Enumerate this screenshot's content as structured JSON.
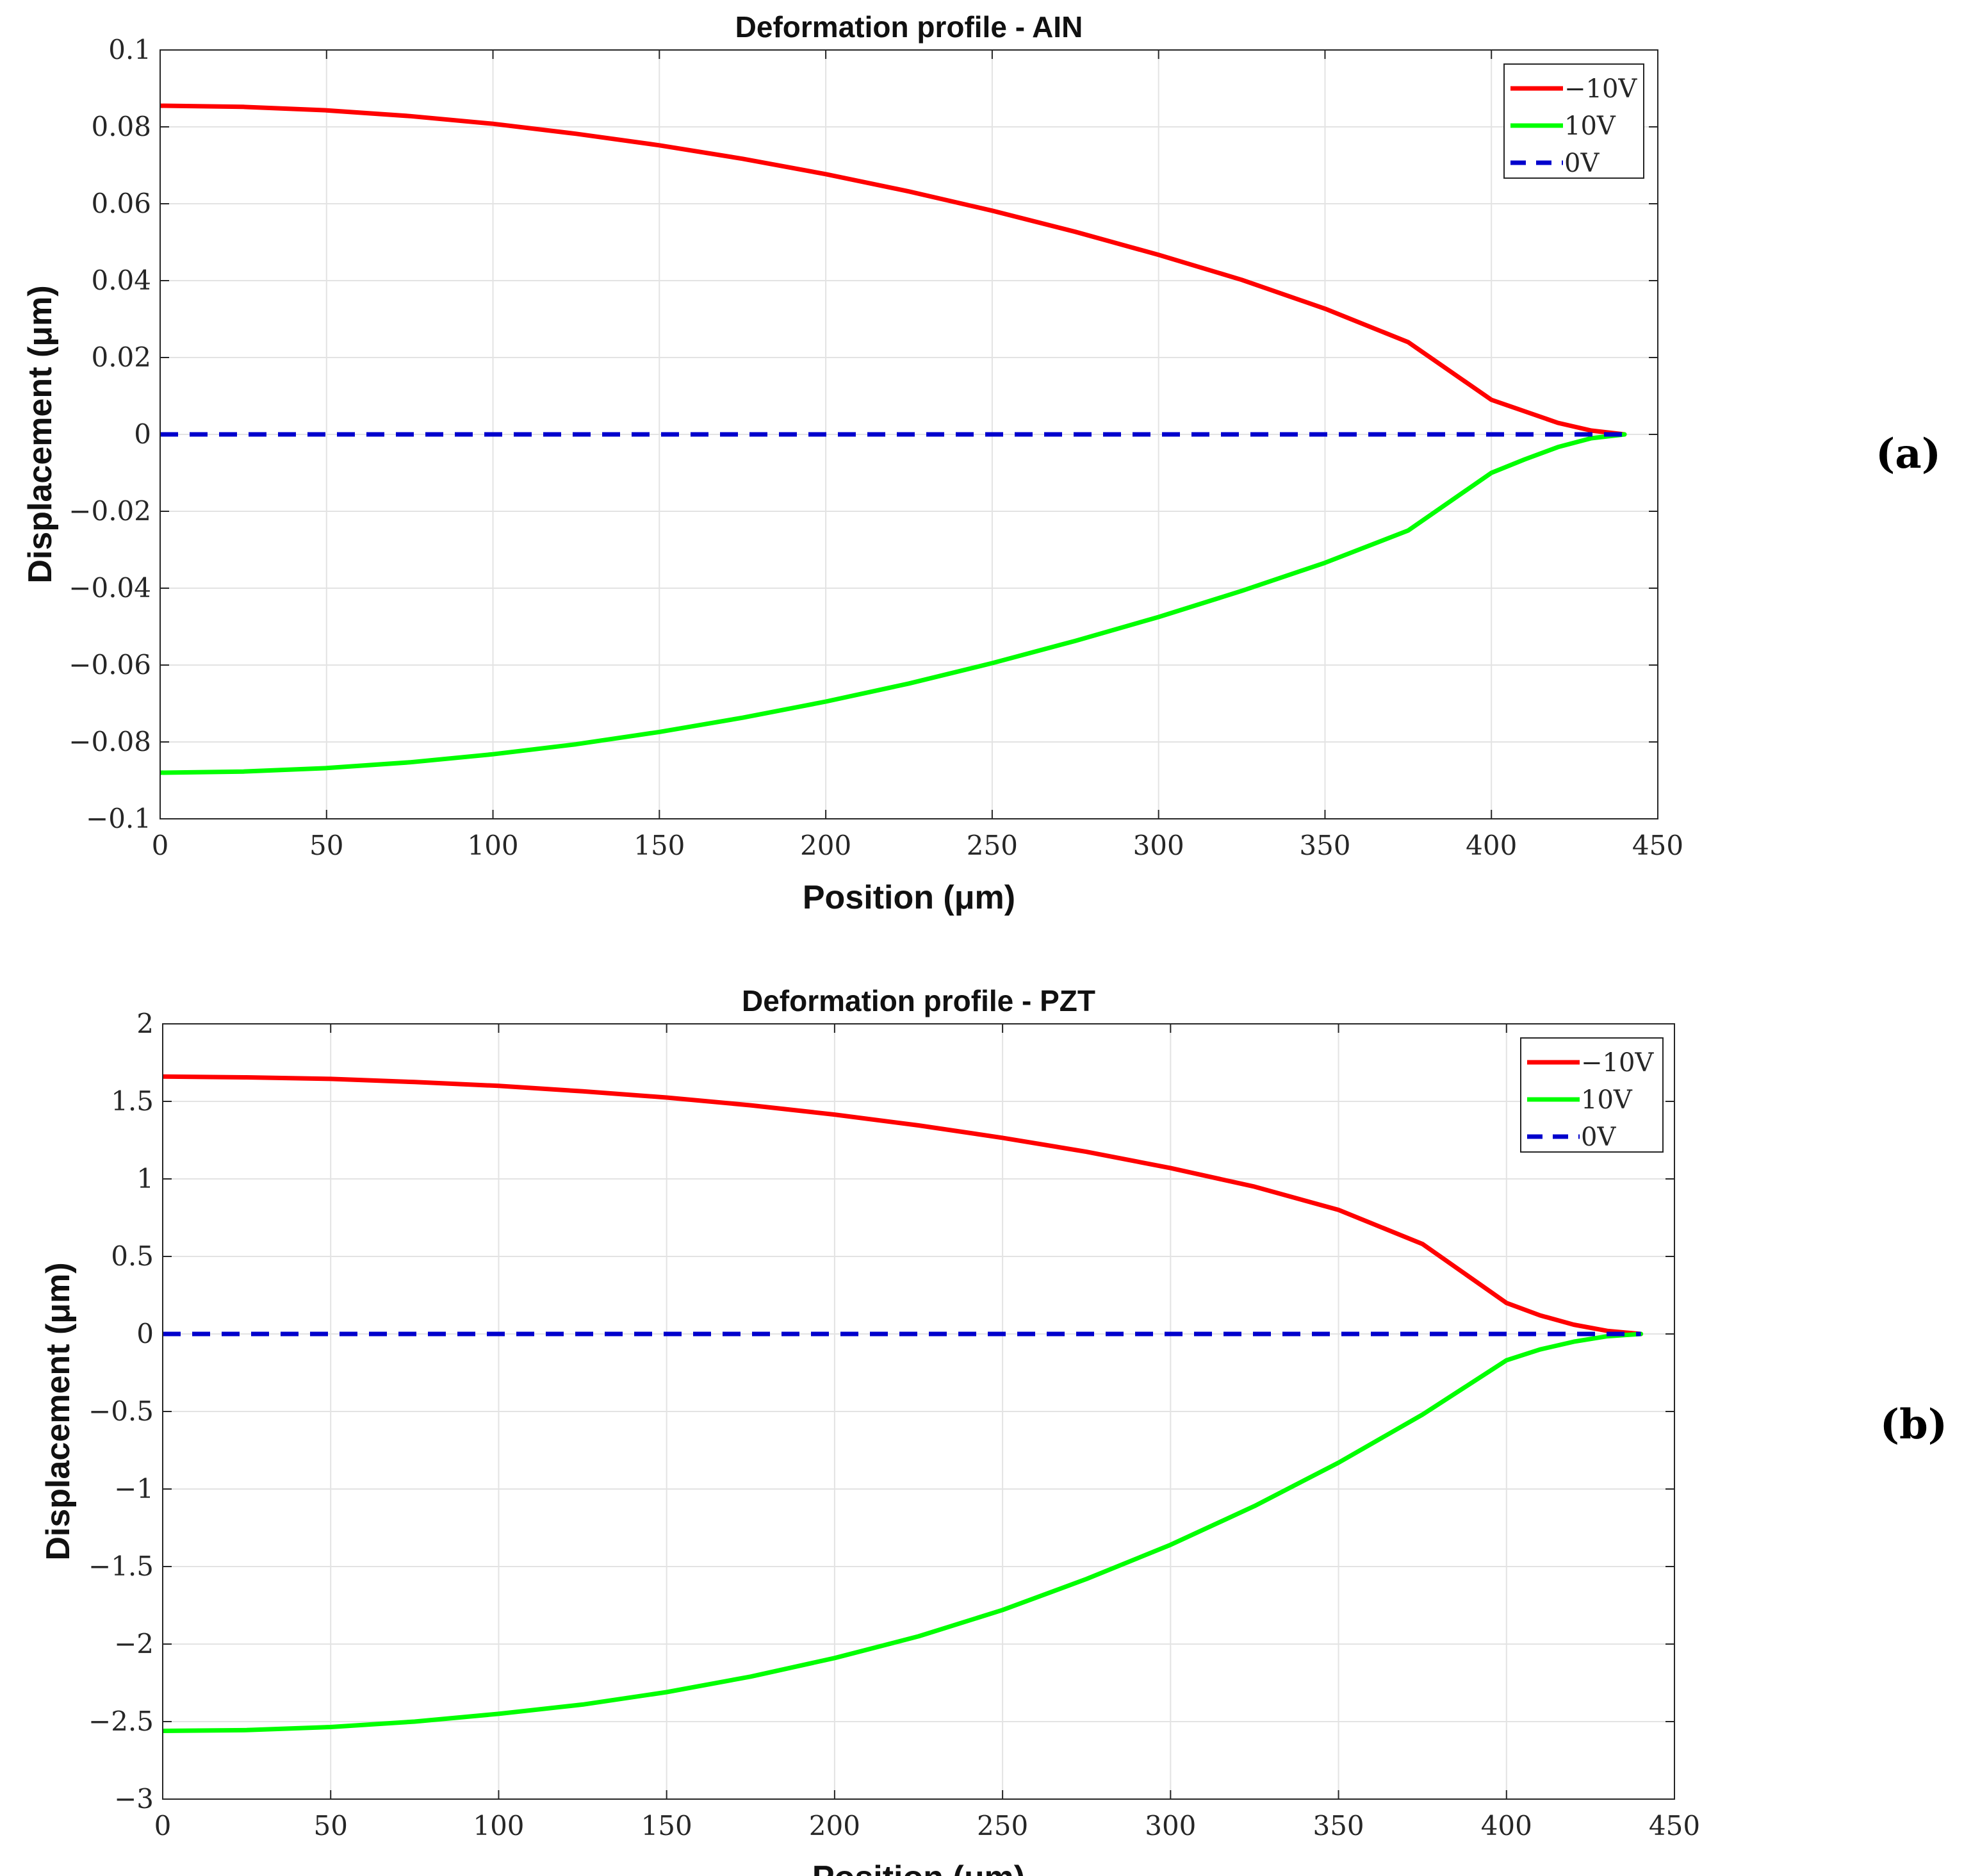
{
  "chart_data": [
    {
      "type": "line",
      "panel_label": "(a)",
      "title": "Deformation profile - AIN",
      "xlabel": "Position (μm)",
      "ylabel": "Displacement (μm)",
      "xlim": [
        0,
        450
      ],
      "ylim": [
        -0.1,
        0.1
      ],
      "xticks": [
        0,
        50,
        100,
        150,
        200,
        250,
        300,
        350,
        400,
        450
      ],
      "xtick_labels": [
        "0",
        "50",
        "100",
        "150",
        "200",
        "250",
        "300",
        "350",
        "400",
        "450"
      ],
      "yticks": [
        0.1,
        0.08,
        0.06,
        0.04,
        0.02,
        0,
        -0.02,
        -0.04,
        -0.06,
        -0.08,
        -0.1
      ],
      "ytick_labels": [
        "0.1",
        "0.08",
        "0.06",
        "0.04",
        "0.02",
        "0",
        "−0.02",
        "−0.04",
        "−0.06",
        "−0.08",
        "−0.1"
      ],
      "grid": true,
      "legend_position": "top-right",
      "x": [
        0,
        25,
        50,
        75,
        100,
        125,
        150,
        175,
        200,
        225,
        250,
        275,
        300,
        325,
        350,
        375,
        400,
        410,
        420,
        430,
        440
      ],
      "series": [
        {
          "name": "−10V",
          "color": "#ff0000",
          "dash": "solid",
          "values": [
            0.0855,
            0.0852,
            0.0843,
            0.0828,
            0.0808,
            0.0782,
            0.0752,
            0.0717,
            0.0677,
            0.0632,
            0.0582,
            0.0527,
            0.0467,
            0.0402,
            0.0327,
            0.024,
            0.009,
            0.006,
            0.003,
            0.001,
            0
          ]
        },
        {
          "name": "10V",
          "color": "#00ff00",
          "dash": "solid",
          "values": [
            -0.088,
            -0.0877,
            -0.0868,
            -0.0853,
            -0.0832,
            -0.0806,
            -0.0774,
            -0.0737,
            -0.0695,
            -0.0648,
            -0.0595,
            -0.0537,
            -0.0475,
            -0.0407,
            -0.0334,
            -0.025,
            -0.01,
            -0.0065,
            -0.0033,
            -0.001,
            0
          ]
        },
        {
          "name": "0V",
          "color": "#0000cc",
          "dash": "dashed",
          "values": [
            0,
            0,
            0,
            0,
            0,
            0,
            0,
            0,
            0,
            0,
            0,
            0,
            0,
            0,
            0,
            0,
            0,
            0,
            0,
            0,
            0
          ]
        }
      ]
    },
    {
      "type": "line",
      "panel_label": "(b)",
      "title": "Deformation profile - PZT",
      "xlabel": "Position (μm)",
      "ylabel": "Displacement (μm)",
      "xlim": [
        0,
        450
      ],
      "ylim": [
        -3,
        2
      ],
      "xticks": [
        0,
        50,
        100,
        150,
        200,
        250,
        300,
        350,
        400,
        450
      ],
      "xtick_labels": [
        "0",
        "50",
        "100",
        "150",
        "200",
        "250",
        "300",
        "350",
        "400",
        "450"
      ],
      "yticks": [
        2,
        1.5,
        1,
        0.5,
        0,
        -0.5,
        -1,
        -1.5,
        -2,
        -2.5,
        -3
      ],
      "ytick_labels": [
        "2",
        "1.5",
        "1",
        "0.5",
        "0",
        "−0.5",
        "−1",
        "−1.5",
        "−2",
        "−2.5",
        "−3"
      ],
      "grid": true,
      "legend_position": "top-right",
      "x": [
        0,
        25,
        50,
        75,
        100,
        125,
        150,
        175,
        200,
        225,
        250,
        275,
        300,
        325,
        350,
        375,
        400,
        410,
        420,
        430,
        440
      ],
      "series": [
        {
          "name": "−10V",
          "color": "#ff0000",
          "dash": "solid",
          "values": [
            1.66,
            1.655,
            1.645,
            1.625,
            1.6,
            1.565,
            1.525,
            1.475,
            1.415,
            1.345,
            1.265,
            1.175,
            1.07,
            0.95,
            0.8,
            0.58,
            0.2,
            0.12,
            0.06,
            0.02,
            0
          ]
        },
        {
          "name": "10V",
          "color": "#00ff00",
          "dash": "solid",
          "values": [
            -2.56,
            -2.555,
            -2.535,
            -2.5,
            -2.45,
            -2.39,
            -2.31,
            -2.21,
            -2.09,
            -1.95,
            -1.78,
            -1.58,
            -1.36,
            -1.11,
            -0.83,
            -0.52,
            -0.17,
            -0.1,
            -0.05,
            -0.015,
            0
          ]
        },
        {
          "name": "0V",
          "color": "#0000cc",
          "dash": "dashed",
          "values": [
            0,
            0,
            0,
            0,
            0,
            0,
            0,
            0,
            0,
            0,
            0,
            0,
            0,
            0,
            0,
            0,
            0,
            0,
            0,
            0,
            0
          ]
        }
      ]
    }
  ]
}
